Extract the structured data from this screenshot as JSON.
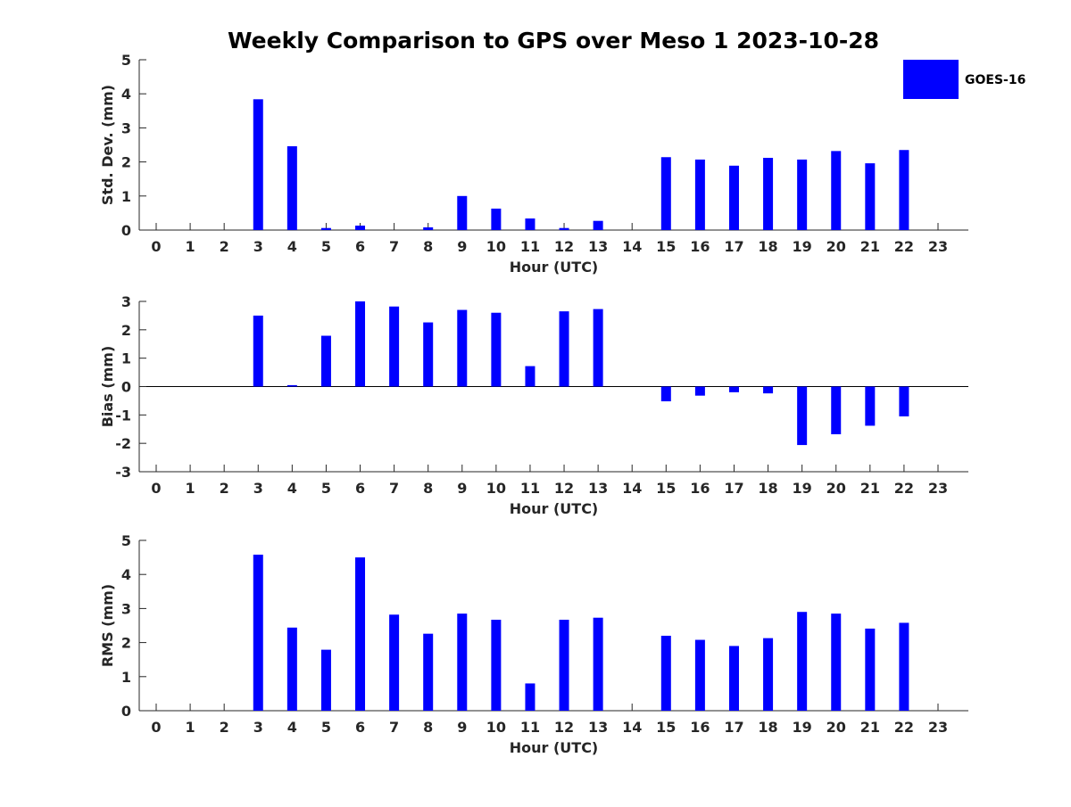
{
  "title": "Weekly Comparison to GPS over Meso 1 2023-10-28",
  "legend": {
    "label": "GOES-16",
    "placement": "top-right"
  },
  "colors": {
    "bar": "#0000ff",
    "axis": "#262626",
    "title": "#000000"
  },
  "chart_data": [
    {
      "type": "bar",
      "ylabel": "Std. Dev. (mm)",
      "xlabel": "Hour (UTC)",
      "ylim": [
        0,
        5
      ],
      "yticks": [
        0,
        1,
        2,
        3,
        4,
        5
      ],
      "categories": [
        0,
        1,
        2,
        3,
        4,
        5,
        6,
        7,
        8,
        9,
        10,
        11,
        12,
        13,
        14,
        15,
        16,
        17,
        18,
        19,
        20,
        21,
        22,
        23
      ],
      "series": [
        {
          "name": "GOES-16",
          "values": [
            null,
            null,
            null,
            3.84,
            2.46,
            0.06,
            0.13,
            null,
            0.08,
            1.0,
            0.63,
            0.34,
            0.06,
            0.27,
            null,
            2.14,
            2.07,
            1.89,
            2.12,
            2.07,
            2.32,
            1.96,
            2.35,
            null
          ]
        }
      ]
    },
    {
      "type": "bar",
      "ylabel": "Bias (mm)",
      "xlabel": "Hour (UTC)",
      "ylim": [
        -3,
        3
      ],
      "yticks": [
        -3,
        -2,
        -1,
        0,
        1,
        2,
        3
      ],
      "zero_line": true,
      "categories": [
        0,
        1,
        2,
        3,
        4,
        5,
        6,
        7,
        8,
        9,
        10,
        11,
        12,
        13,
        14,
        15,
        16,
        17,
        18,
        19,
        20,
        21,
        22,
        23
      ],
      "series": [
        {
          "name": "GOES-16",
          "values": [
            null,
            null,
            null,
            2.5,
            0.05,
            1.79,
            3.0,
            2.82,
            2.26,
            2.7,
            2.6,
            0.72,
            2.65,
            2.73,
            null,
            -0.52,
            -0.32,
            -0.2,
            -0.24,
            -2.06,
            -1.68,
            -1.38,
            -1.05,
            null
          ]
        }
      ]
    },
    {
      "type": "bar",
      "ylabel": "RMS (mm)",
      "xlabel": "Hour (UTC)",
      "ylim": [
        0,
        5
      ],
      "yticks": [
        0,
        1,
        2,
        3,
        4,
        5
      ],
      "categories": [
        0,
        1,
        2,
        3,
        4,
        5,
        6,
        7,
        8,
        9,
        10,
        11,
        12,
        13,
        14,
        15,
        16,
        17,
        18,
        19,
        20,
        21,
        22,
        23
      ],
      "series": [
        {
          "name": "GOES-16",
          "values": [
            null,
            null,
            null,
            4.58,
            2.44,
            1.79,
            4.5,
            2.82,
            2.26,
            2.85,
            2.67,
            0.8,
            2.67,
            2.73,
            null,
            2.2,
            2.08,
            1.9,
            2.13,
            2.9,
            2.85,
            2.41,
            2.58,
            null
          ]
        }
      ]
    }
  ]
}
